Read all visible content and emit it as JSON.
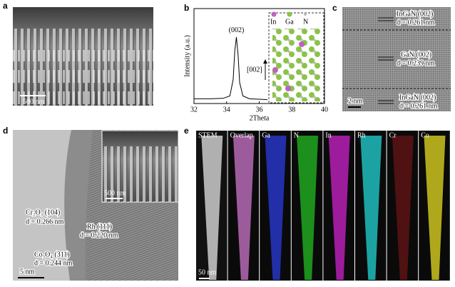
{
  "panels": {
    "a": {
      "label": "a",
      "scale_bar": "500 nm"
    },
    "b": {
      "label": "b",
      "legend": [
        "In",
        "Ga",
        "N"
      ],
      "direction": "[002]"
    },
    "c": {
      "label": "c",
      "layers": [
        {
          "name": "InGaN (002)",
          "spacing": "d = 0.261 nm"
        },
        {
          "name": "GaN (002)",
          "spacing": "d = 0.239 nm"
        },
        {
          "name": "InGaN (002)",
          "spacing": "d = 0.261 nm"
        }
      ],
      "scale_bar": "2 nm"
    },
    "d": {
      "label": "d",
      "annotations": [
        {
          "name": "Cr₂O₃ (104)",
          "spacing": "d = 0.266 nm"
        },
        {
          "name": "Rh (111)",
          "spacing": "d = 0.220 nm"
        },
        {
          "name": "Co₃O₄ (311)",
          "spacing": "d = 0.244 nm"
        }
      ],
      "scale_bar": "5 nm",
      "inset_scale_bar": "500 nm"
    },
    "e": {
      "label": "e",
      "maps": [
        "STEM",
        "Overlap",
        "Ga",
        "N",
        "In",
        "Rh",
        "Cr",
        "Co"
      ],
      "scale_bar": "50 nm"
    }
  },
  "chart_data": {
    "type": "line",
    "x_label": "2Theta",
    "y_label": "Intensity (a.u.)",
    "annotation": "(002)",
    "xlim": [
      32,
      40
    ],
    "xticks": [
      32,
      34,
      36,
      38,
      40
    ],
    "ylim": [
      0,
      100
    ],
    "x": [
      32,
      33,
      33.8,
      34.2,
      34.4,
      34.5,
      34.6,
      34.7,
      34.8,
      35.0,
      35.4,
      36,
      36.5
    ],
    "series": [
      {
        "color": "#000000",
        "values": [
          5,
          5,
          5.5,
          8,
          25,
          55,
          70,
          52,
          22,
          8,
          5,
          4.5,
          4
        ]
      }
    ]
  }
}
